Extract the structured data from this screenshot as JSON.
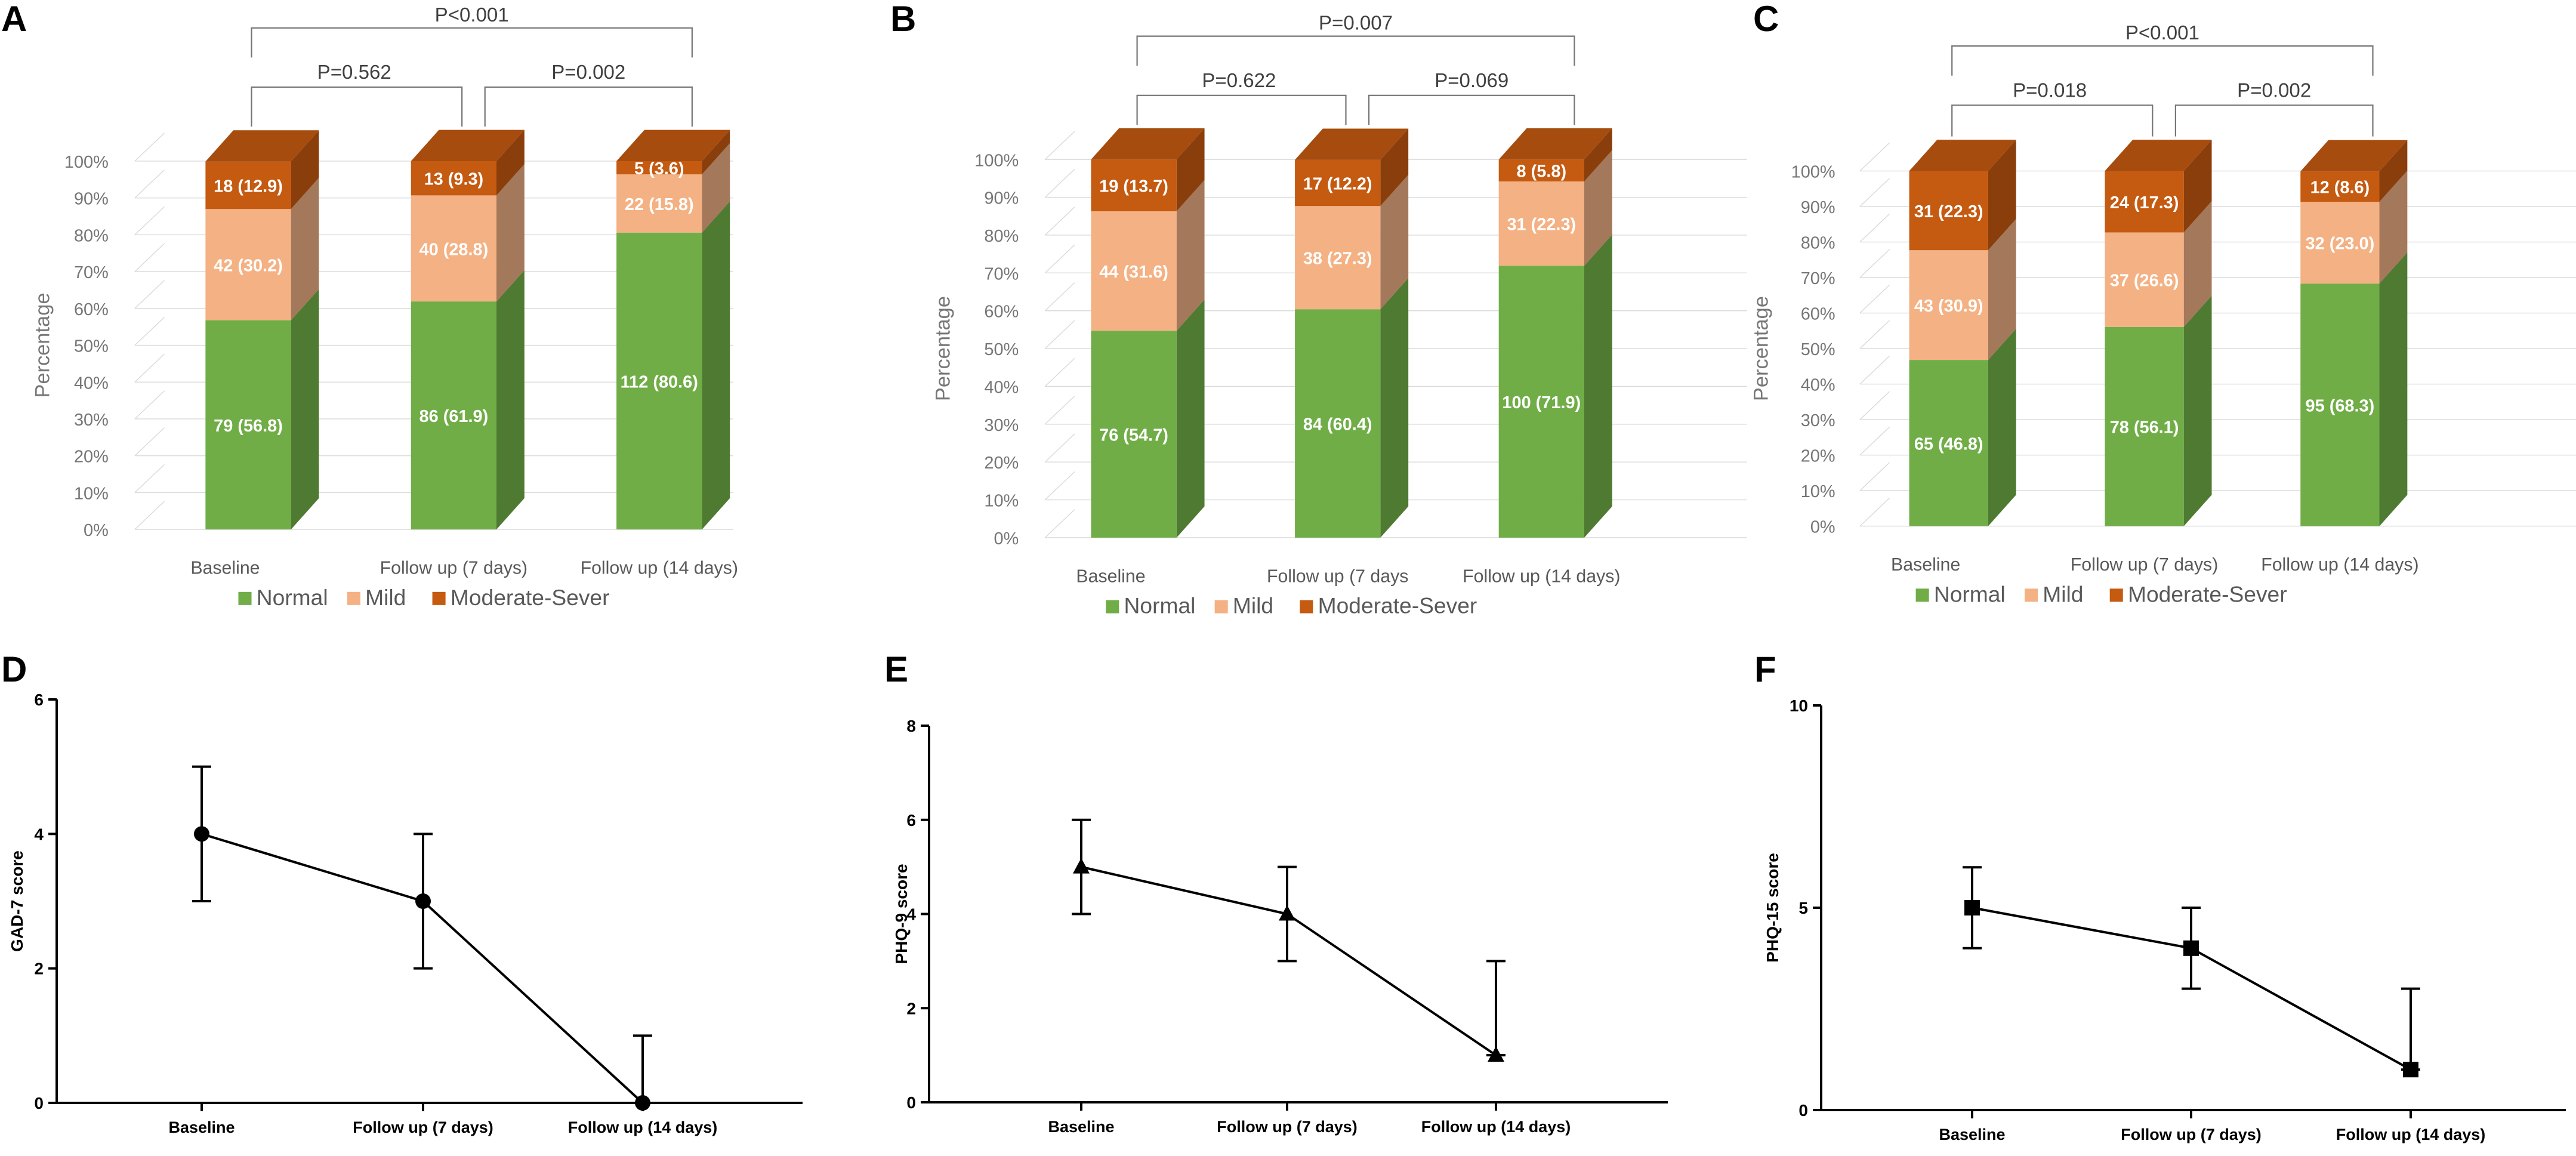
{
  "panels": [
    {
      "label": "A"
    },
    {
      "label": "B"
    },
    {
      "label": "C"
    },
    {
      "label": "D"
    },
    {
      "label": "E"
    },
    {
      "label": "F"
    }
  ],
  "colors": {
    "normal": "#70ad47",
    "normal_side": "#4e7a31",
    "normal_top": "#5d9339",
    "mild": "#f4b183",
    "mild_side": "#a4785a",
    "mild_top": "#c89070",
    "severe": "#c55a11",
    "severe_side": "#8a3e0b",
    "severe_top": "#a64c0e",
    "grid": "#d9d9d9",
    "axis_text": "#767676",
    "line": "#000000"
  },
  "chart_data": [
    {
      "type": "bar",
      "panel": "A",
      "stacked": true,
      "categories": [
        "Baseline",
        "Follow up (7 days)",
        "Follow up (14 days)"
      ],
      "series": [
        {
          "name": "Normal",
          "values": [
            56.8,
            61.9,
            80.6
          ],
          "labels": [
            "79 (56.8)",
            "86 (61.9)",
            "112 (80.6)"
          ]
        },
        {
          "name": "Mild",
          "values": [
            30.2,
            28.8,
            15.8
          ],
          "labels": [
            "42 (30.2)",
            "40 (28.8)",
            "22 (15.8)"
          ]
        },
        {
          "name": "Moderate-Sever",
          "values": [
            12.9,
            9.3,
            3.6
          ],
          "labels": [
            "18 (12.9)",
            "13 (9.3)",
            "5 (3.6)"
          ]
        }
      ],
      "ylabel": "Percentage",
      "yticks": [
        "0%",
        "10%",
        "20%",
        "30%",
        "40%",
        "50%",
        "60%",
        "70%",
        "80%",
        "90%",
        "100%"
      ],
      "ylim": [
        0,
        100
      ],
      "legend": "bottom",
      "pvalues": {
        "top": "<0.001",
        "left": "=0.562",
        "right": "=0.002"
      }
    },
    {
      "type": "bar",
      "panel": "B",
      "stacked": true,
      "categories": [
        "Baseline",
        "Follow up (7 days",
        "Follow up (14 days)"
      ],
      "series": [
        {
          "name": "Normal",
          "values": [
            54.7,
            60.4,
            71.9
          ],
          "labels": [
            "76 (54.7)",
            "84 (60.4)",
            "100 (71.9)"
          ]
        },
        {
          "name": "Mild",
          "values": [
            31.6,
            27.3,
            22.3
          ],
          "labels": [
            "44 (31.6)",
            "38 (27.3)",
            "31 (22.3)"
          ]
        },
        {
          "name": "Moderate-Sever",
          "values": [
            13.7,
            12.2,
            5.8
          ],
          "labels": [
            "19 (13.7)",
            "17 (12.2)",
            "8 (5.8)"
          ]
        }
      ],
      "ylabel": "Percentage",
      "yticks": [
        "0%",
        "10%",
        "20%",
        "30%",
        "40%",
        "50%",
        "60%",
        "70%",
        "80%",
        "90%",
        "100%"
      ],
      "ylim": [
        0,
        100
      ],
      "legend": "bottom",
      "pvalues": {
        "top": "=0.007",
        "left": "=0.622",
        "right": "=0.069"
      }
    },
    {
      "type": "bar",
      "panel": "C",
      "stacked": true,
      "categories": [
        "Baseline",
        "Follow up (7 days)",
        "Follow up (14 days)"
      ],
      "series": [
        {
          "name": "Normal",
          "values": [
            46.8,
            56.1,
            68.3
          ],
          "labels": [
            "65 (46.8)",
            "78 (56.1)",
            "95 (68.3)"
          ]
        },
        {
          "name": "Mild",
          "values": [
            30.9,
            26.6,
            23.0
          ],
          "labels": [
            "43 (30.9)",
            "37 (26.6)",
            "32 (23.0)"
          ]
        },
        {
          "name": "Moderate-Sever",
          "values": [
            22.3,
            17.3,
            8.6
          ],
          "labels": [
            "31 (22.3)",
            "24 (17.3)",
            "12 (8.6)"
          ]
        }
      ],
      "ylabel": "Percentage",
      "yticks": [
        "0%",
        "10%",
        "20%",
        "30%",
        "40%",
        "50%",
        "60%",
        "70%",
        "80%",
        "90%",
        "100%"
      ],
      "ylim": [
        0,
        100
      ],
      "legend": "bottom",
      "pvalues": {
        "top": "<0.001",
        "left": "=0.018",
        "right": "=0.002"
      }
    },
    {
      "type": "line",
      "panel": "D",
      "categories": [
        "Baseline",
        "Follow up (7 days)",
        "Follow up (14 days)"
      ],
      "values": [
        4,
        3,
        0
      ],
      "err_low": [
        3,
        2,
        0
      ],
      "err_high": [
        5,
        4,
        1
      ],
      "marker": "circle",
      "ylabel": "GAD-7 score",
      "ylim": [
        0,
        6
      ],
      "yticks": [
        "0",
        "2",
        "4",
        "6"
      ]
    },
    {
      "type": "line",
      "panel": "E",
      "categories": [
        "Baseline",
        "Follow up (7 days)",
        "Follow up (14 days)"
      ],
      "values": [
        5,
        4,
        1
      ],
      "err_low": [
        4,
        3,
        1
      ],
      "err_high": [
        6,
        5,
        3
      ],
      "marker": "triangle",
      "ylabel": "PHQ-9 score",
      "ylim": [
        0,
        8
      ],
      "yticks": [
        "0",
        "2",
        "4",
        "6",
        "8"
      ]
    },
    {
      "type": "line",
      "panel": "F",
      "categories": [
        "Baseline",
        "Follow up (7 days)",
        "Follow up (14 days)"
      ],
      "values": [
        5,
        4,
        1
      ],
      "err_low": [
        4,
        3,
        1
      ],
      "err_high": [
        6,
        5,
        3
      ],
      "marker": "square",
      "ylabel": "PHQ-15 score",
      "ylim": [
        0,
        10
      ],
      "yticks": [
        "0",
        "5",
        "10"
      ]
    }
  ]
}
